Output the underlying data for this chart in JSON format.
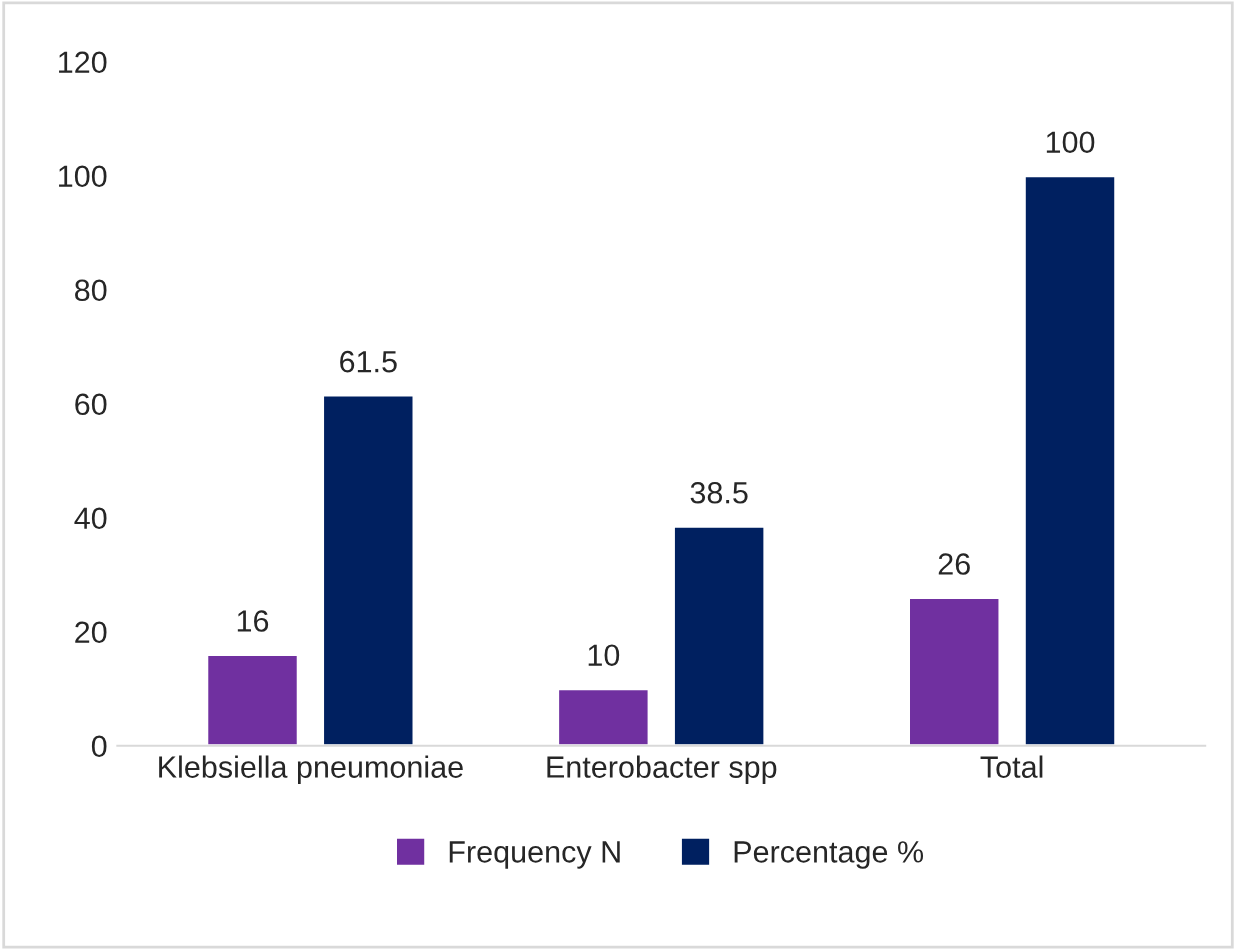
{
  "chart_data": {
    "type": "bar",
    "categories": [
      "Klebsiella pneumoniae",
      "Enterobacter spp",
      "Total"
    ],
    "series": [
      {
        "name": "Frequency N",
        "color": "#7030a0",
        "values": [
          16,
          10,
          26
        ]
      },
      {
        "name": "Percentage %",
        "color": "#002060",
        "values": [
          61.5,
          38.5,
          100
        ]
      }
    ],
    "ylim": [
      0,
      120
    ],
    "yticks": [
      0,
      20,
      40,
      60,
      80,
      100,
      120
    ],
    "data_labels": true,
    "grid": false,
    "legend": "bottom"
  }
}
